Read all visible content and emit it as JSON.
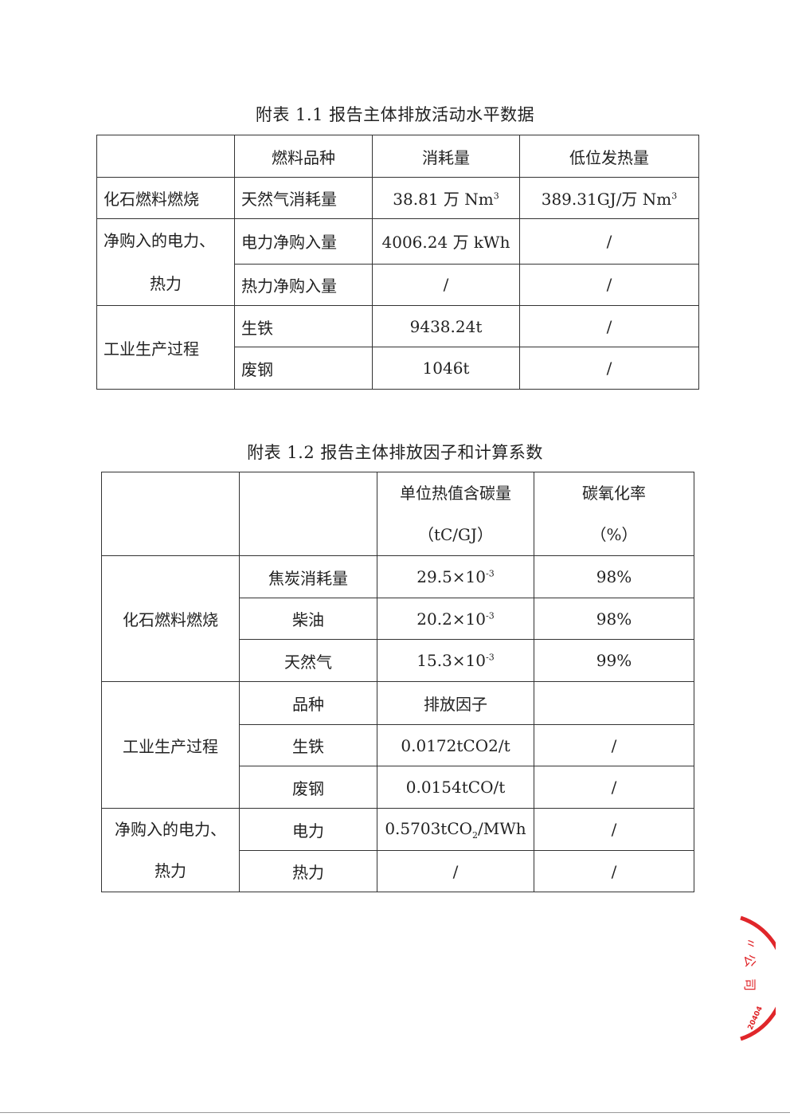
{
  "table1": {
    "title": "附表 1.1 报告主体排放活动水平数据",
    "headers": [
      "",
      "燃料品种",
      "消耗量",
      "低位发热量"
    ],
    "groups": {
      "fossil": "化石燃料燃烧",
      "power_line1": "净购入的电力、",
      "power_line2": "热力",
      "industrial": "工业生产过程"
    },
    "rows": [
      {
        "item": "天然气消耗量",
        "consumption": "38.81 万 Nm",
        "consumption_sup": "3",
        "ncv": "389.31GJ/万 Nm",
        "ncv_sup": "3"
      },
      {
        "item": "电力净购入量",
        "consumption": "4006.24 万 kWh",
        "ncv": "/"
      },
      {
        "item": "热力净购入量",
        "consumption": "/",
        "ncv": "/"
      },
      {
        "item": "生铁",
        "consumption": "9438.24t",
        "ncv": "/"
      },
      {
        "item": "废钢",
        "consumption": "1046t",
        "ncv": "/"
      }
    ]
  },
  "table2": {
    "title": "附表 1.2 报告主体排放因子和计算系数",
    "headers": {
      "carbon_line1": "单位热值含碳量",
      "carbon_line2": "（tC/GJ）",
      "oxidation_line1": "碳氧化率",
      "oxidation_line2": "（%）"
    },
    "groups": {
      "fossil": "化石燃料燃烧",
      "industrial": "工业生产过程",
      "power_line1": "净购入的电力、",
      "power_line2": "热力"
    },
    "fossil_rows": [
      {
        "item": "焦炭消耗量",
        "carbon": "29.5×10",
        "exp": "-3",
        "oxidation": "98%"
      },
      {
        "item": "柴油",
        "carbon": "20.2×10",
        "exp": "-3",
        "oxidation": "98%"
      },
      {
        "item": "天然气",
        "carbon": "15.3×10",
        "exp": "-3",
        "oxidation": "99%"
      }
    ],
    "industrial_header": {
      "item": "品种",
      "factor": "排放因子",
      "extra": ""
    },
    "industrial_rows": [
      {
        "item": "生铁",
        "factor": "0.0172tCO2/t",
        "extra": "/"
      },
      {
        "item": "废钢",
        "factor": "0.0154tCO/t",
        "extra": "/"
      }
    ],
    "power_rows": [
      {
        "item": "电力",
        "factor": "0.5703tCO",
        "factor_sub": "2",
        "factor_tail": "/MWh",
        "extra": "/"
      },
      {
        "item": "热力",
        "factor": "/",
        "extra": "/"
      }
    ]
  },
  "stamp": {
    "text": "公司 20404",
    "color": "#e0262a"
  }
}
